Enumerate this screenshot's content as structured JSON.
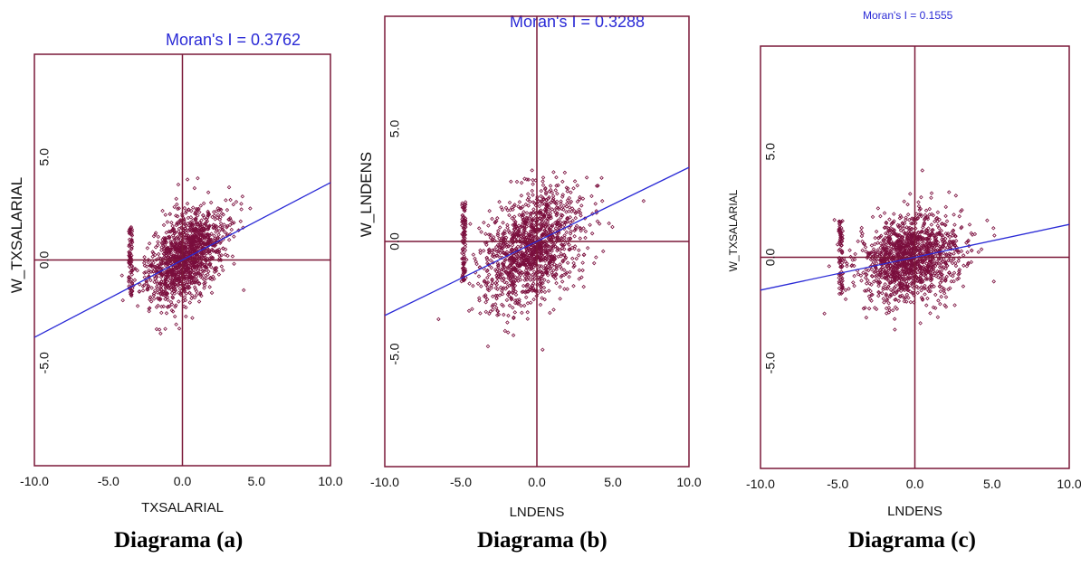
{
  "charts": [
    {
      "caption": "Diagrama (a)",
      "chart_data": {
        "type": "scatter",
        "title": "Moran's I = 0.3762",
        "xlabel": "TXSALARIAL",
        "ylabel": "W_TXSALARIAL",
        "xlim": [
          -10,
          10
        ],
        "ylim": [
          -10,
          10
        ],
        "x_ticks": [
          "-10.0",
          "-5.0",
          "0.0",
          "5.0",
          "10.0"
        ],
        "y_ticks": [
          "-5.0",
          "0.0",
          "5.0"
        ],
        "grid": false,
        "regression_line": {
          "slope": 0.3762,
          "intercept": 0
        },
        "point_cloud": {
          "center": [
            0.3,
            0.2
          ],
          "spread": [
            1.3,
            1.15
          ],
          "correlation": 0.45,
          "count": 1400,
          "outliers_x": [
            -3.5
          ]
        },
        "colors": {
          "points": "#7a0e3d",
          "line": "#2a2ad6",
          "frame": "#7a1838"
        }
      }
    },
    {
      "caption": "Diagrama (b)",
      "chart_data": {
        "type": "scatter",
        "title": "Moran's I = 0.3288",
        "xlabel": "LNDENS",
        "ylabel": "W_LNDENS",
        "xlim": [
          -10,
          10
        ],
        "ylim": [
          -10,
          10
        ],
        "x_ticks": [
          "-10.0",
          "-5.0",
          "0.0",
          "5.0",
          "10.0"
        ],
        "y_ticks": [
          "-5.0",
          "0.0",
          "5.0"
        ],
        "grid": false,
        "regression_line": {
          "slope": 0.3288,
          "intercept": 0
        },
        "point_cloud": {
          "center": [
            -0.3,
            -0.3
          ],
          "spread": [
            1.6,
            1.3
          ],
          "correlation": 0.4,
          "count": 1400,
          "outliers_x": [
            -4.8
          ]
        },
        "colors": {
          "points": "#7a0e3d",
          "line": "#2a2ad6",
          "frame": "#7a1838"
        }
      }
    },
    {
      "caption": "Diagrama (c)",
      "chart_data": {
        "type": "scatter",
        "title": "Moran's I = 0.1555",
        "xlabel": "LNDENS",
        "ylabel": "W_TXSALARIAL",
        "xlim": [
          -10,
          10
        ],
        "ylim": [
          -10,
          10
        ],
        "x_ticks": [
          "-10.0",
          "-5.0",
          "0.0",
          "5.0",
          "10.0"
        ],
        "y_ticks": [
          "-5.0",
          "0.0",
          "5.0"
        ],
        "grid": false,
        "regression_line": {
          "slope": 0.1555,
          "intercept": 0
        },
        "point_cloud": {
          "center": [
            -0.3,
            0.0
          ],
          "spread": [
            1.6,
            1.05
          ],
          "correlation": 0.18,
          "count": 1400,
          "outliers_x": [
            -4.8
          ]
        },
        "colors": {
          "points": "#7a0e3d",
          "line": "#2a2ad6",
          "frame": "#7a1838"
        }
      }
    }
  ]
}
